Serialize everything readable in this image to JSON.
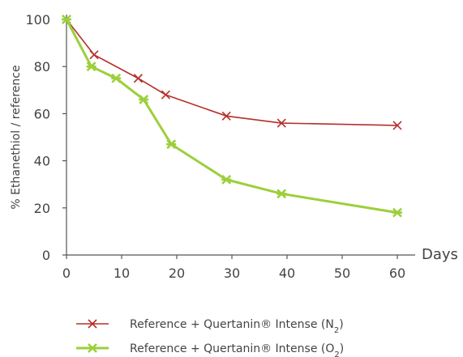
{
  "chart_data": {
    "type": "line",
    "title": "",
    "xlabel": "Days",
    "ylabel": "% Ethanethiol / reference",
    "xlim": [
      0,
      60
    ],
    "ylim": [
      0,
      100
    ],
    "xticks": [
      0,
      10,
      20,
      30,
      40,
      50,
      60
    ],
    "yticks": [
      0,
      20,
      40,
      60,
      80,
      100
    ],
    "grid": false,
    "legend_position": "bottom",
    "series": [
      {
        "name_prefix": "Reference + Quertanin® Intense (N",
        "name_sub": "2",
        "name_suffix": ")",
        "color": "#b5302a",
        "marker": "x",
        "x": [
          0,
          5,
          13,
          18,
          29,
          39,
          60
        ],
        "y": [
          100,
          85,
          75,
          68,
          59,
          56,
          55
        ]
      },
      {
        "name_prefix": "Reference + Quertanin® Intense (O",
        "name_sub": "2",
        "name_suffix": ")",
        "color": "#9ccf3b",
        "marker": "star",
        "x": [
          0,
          4.5,
          9,
          14,
          19,
          29,
          39,
          60
        ],
        "y": [
          100,
          80,
          75,
          66,
          47,
          32,
          26,
          18
        ]
      }
    ]
  }
}
